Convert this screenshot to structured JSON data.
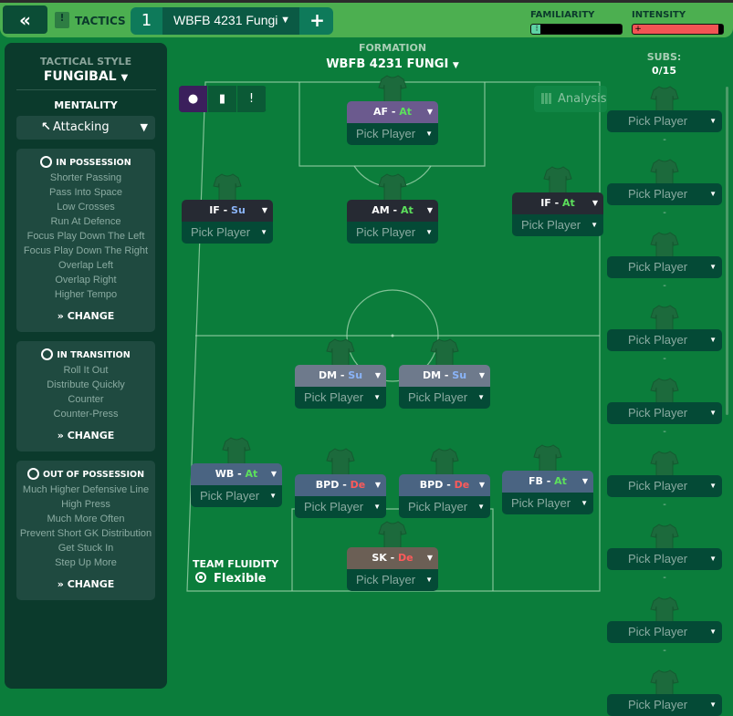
{
  "topbar": {
    "back_icon": "double-chevron-left",
    "tactics_label": "TACTICS",
    "tab_number": "1",
    "tab_name": "WBFB 4231 Fungi",
    "add_label": "+",
    "familiarity": {
      "label": "FAMILIARITY",
      "value_pct": 10,
      "color": "#5fd3a5"
    },
    "intensity": {
      "label": "INTENSITY",
      "value_pct": 95,
      "color": "#f25454"
    }
  },
  "sidebar": {
    "tactical_style_label": "TACTICAL STYLE",
    "tactical_style": "FUNGIBAL",
    "mentality_label": "MENTALITY",
    "mentality": "Attacking",
    "sections": [
      {
        "title": "IN POSSESSION",
        "items": [
          "Shorter Passing",
          "Pass Into Space",
          "Low Crosses",
          "Run At Defence",
          "Focus Play Down The Left",
          "Focus Play Down The Right",
          "Overlap Left",
          "Overlap Right",
          "Higher Tempo"
        ],
        "change": "CHANGE"
      },
      {
        "title": "IN TRANSITION",
        "items": [
          "Roll It Out",
          "Distribute Quickly",
          "Counter",
          "Counter-Press"
        ],
        "change": "CHANGE"
      },
      {
        "title": "OUT OF POSSESSION",
        "items": [
          "Much Higher Defensive Line",
          "High Press",
          "Much More Often",
          "Prevent Short GK Distribution",
          "Get Stuck In",
          "Step Up More"
        ],
        "change": "CHANGE"
      }
    ]
  },
  "formation": {
    "label": "FORMATION",
    "name": "WBFB 4231 FUNGI"
  },
  "analysis_label": "Analysis",
  "subs": {
    "label": "SUBS:",
    "count": "0/15",
    "pick_label": "Pick Player",
    "dash": "-",
    "slots": 9
  },
  "duty_colors": {
    "At": "#5ce05c",
    "Su": "#8ab4f8",
    "De": "#ff5a5a"
  },
  "players": [
    {
      "role": "AF",
      "duty": "At",
      "pick": "Pick Player",
      "header": "#6b5a8e"
    },
    {
      "role": "IF",
      "duty": "Su",
      "pick": "Pick Player",
      "header": "#262a33"
    },
    {
      "role": "AM",
      "duty": "At",
      "pick": "Pick Player",
      "header": "#262a33"
    },
    {
      "role": "IF",
      "duty": "At",
      "pick": "Pick Player",
      "header": "#262a33"
    },
    {
      "role": "DM",
      "duty": "Su",
      "pick": "Pick Player",
      "header": "#6e7a8c"
    },
    {
      "role": "DM",
      "duty": "Su",
      "pick": "Pick Player",
      "header": "#6e7a8c"
    },
    {
      "role": "WB",
      "duty": "At",
      "pick": "Pick Player",
      "header": "#4a6482"
    },
    {
      "role": "BPD",
      "duty": "De",
      "pick": "Pick Player",
      "header": "#4a6482"
    },
    {
      "role": "BPD",
      "duty": "De",
      "pick": "Pick Player",
      "header": "#4a6482"
    },
    {
      "role": "FB",
      "duty": "At",
      "pick": "Pick Player",
      "header": "#4a6482"
    },
    {
      "role": "SK",
      "duty": "De",
      "pick": "Pick Player",
      "header": "#6b5f55"
    }
  ],
  "team_fluidity": {
    "label": "TEAM FLUIDITY",
    "value": "Flexible"
  }
}
